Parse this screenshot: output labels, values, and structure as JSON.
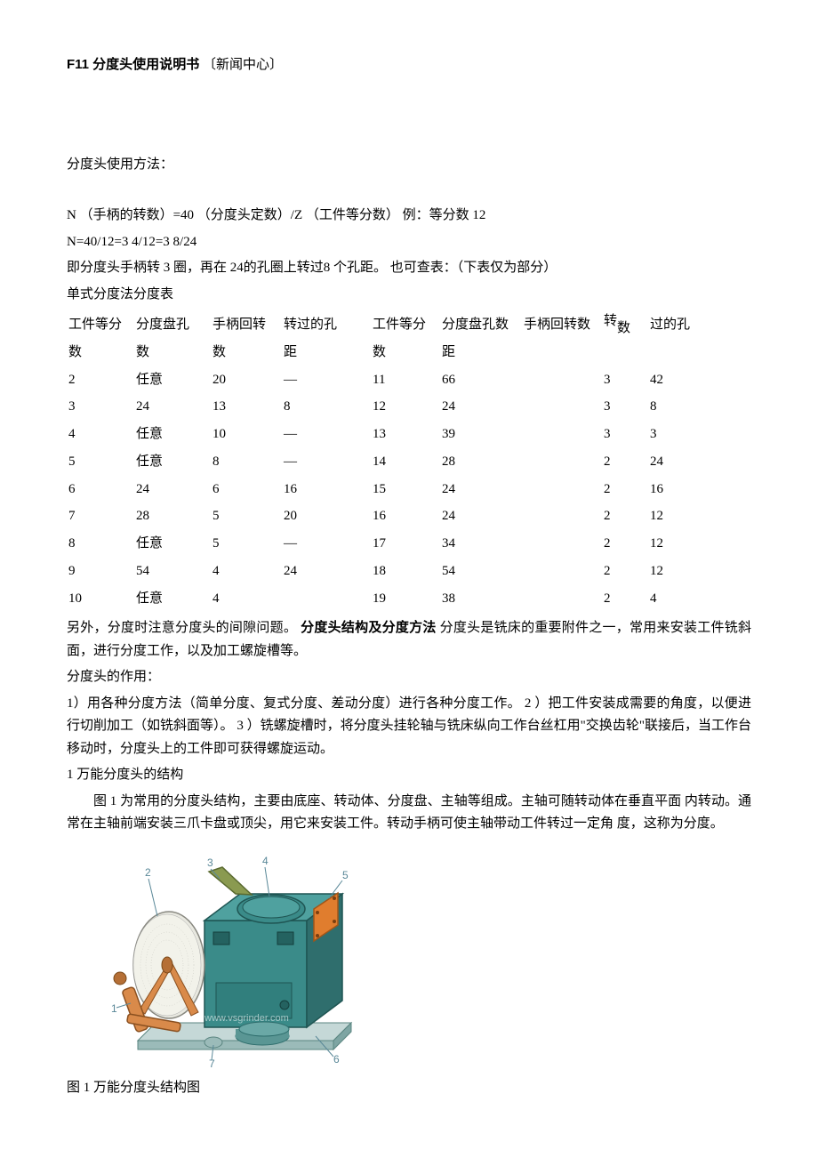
{
  "title": {
    "bold": "F11 分度头使用说明书",
    "bracket": "〔新闻中心〕"
  },
  "usage_heading": "分度头使用方法：",
  "formula_line": "N （手柄的转数）=40 （分度头定数）/Z （工件等分数）   例：等分数  12",
  "formula_calc": "N=40/12=3 4/12=3 8/24",
  "formula_desc": "即分度头手柄转  3 圈，再在  24的孔圈上转过8 个孔距。   也可查表：（下表仅为部分）",
  "table_title": "单式分度法分度表",
  "left_table": {
    "header_top": [
      "工件等分",
      "分度盘孔",
      "手柄回转",
      "转过的孔"
    ],
    "header_bot": [
      "数",
      "数",
      "数",
      "距"
    ],
    "rows": [
      [
        "2",
        "任意",
        "20",
        "—"
      ],
      [
        "3",
        "24",
        "13",
        "8"
      ],
      [
        "4",
        "任意",
        "10",
        "—"
      ],
      [
        "5",
        "任意",
        "8",
        "—"
      ],
      [
        "6",
        "24",
        "6",
        "16"
      ],
      [
        "7",
        "28",
        "5",
        "20"
      ],
      [
        "8",
        "任意",
        "5",
        "—"
      ],
      [
        "9",
        "54",
        "4",
        "24"
      ],
      [
        "10",
        "任意",
        "4",
        ""
      ]
    ]
  },
  "right_table": {
    "header_top": [
      "工件等分",
      "分度盘孔数",
      "手柄回转数",
      "转",
      "过的孔"
    ],
    "header_bot": [
      "数",
      "距",
      "",
      "",
      ""
    ],
    "header_sub": "数",
    "rows": [
      [
        "11",
        "66",
        "",
        "3",
        "42"
      ],
      [
        "12",
        "24",
        "",
        "3",
        "8"
      ],
      [
        "13",
        "39",
        "",
        "3",
        "3"
      ],
      [
        "14",
        "28",
        "",
        "2",
        "24"
      ],
      [
        "15",
        "24",
        "",
        "2",
        "16"
      ],
      [
        "16",
        "24",
        "",
        "2",
        "12"
      ],
      [
        "17",
        "34",
        "",
        "2",
        "12"
      ],
      [
        "18",
        "54",
        "",
        "2",
        "12"
      ],
      [
        "19",
        "38",
        "",
        "2",
        "4"
      ]
    ]
  },
  "after_table_para_1a": "另外，分度时注意分度头的间隙问题。   ",
  "after_table_bold": "分度头结构及分度方法",
  "after_table_para_1b": " 分度头是铣床的重要附件之一，常用来安装工件铣斜面，进行分度工作，以及加工螺旋槽等。",
  "role_heading": "分度头的作用：",
  "role_para": "1）用各种分度方法（简单分度、复式分度、差动分度）进行各种分度工作。  2 ）把工件安装成需要的角度，以便进行切削加工（如铣斜面等）。  3 ）铣螺旋槽时，将分度头挂轮轴与铣床纵向工作台丝杠用\"交换齿轮\"联接后，当工作台移动时，分度头上的工件即可获得螺旋运动。",
  "structure_heading": "1 万能分度头的结构",
  "structure_para": "图  1 为常用的分度头结构，主要由底座、转动体、分度盘、主轴等组成。主轴可随转动体在垂直平面  内转动。通常在主轴前端安装三爪卡盘或顶尖，用它来安装工件。转动手柄可使主轴带动工件转过一定角  度，这称为分度。",
  "figure": {
    "caption": "图  1 万能分度头结构图",
    "labels": [
      "1",
      "2",
      "3",
      "4",
      "5",
      "6",
      "7"
    ],
    "watermark": "www.vsgrinder.com",
    "colors": {
      "body": "#3a8b89",
      "body_side": "#2f6e6d",
      "body_top": "#4fa19f",
      "handle": "#d98a4a",
      "handle_dark": "#b56f36",
      "disc": "#e8e8e0",
      "disc_stroke": "#888880",
      "plate": "#e07d2e",
      "plate_stroke": "#a05518",
      "tip": "#8a9a50",
      "base": "#6aa8a6",
      "label_color": "#5a8898",
      "line_color": "#5a8898"
    }
  }
}
